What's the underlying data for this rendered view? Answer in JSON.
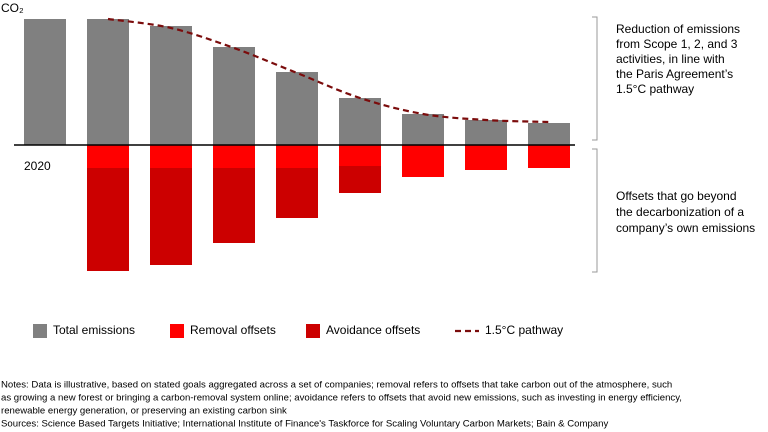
{
  "chart_data": {
    "type": "bar",
    "y_label": "CO₂",
    "categories": [
      "2020",
      null,
      null,
      null,
      null,
      null,
      null,
      null,
      null
    ],
    "ylim": [
      -130,
      130
    ],
    "series": [
      {
        "name": "Total emissions",
        "color": "#808080",
        "values": [
          126,
          126,
          119,
          98,
          73,
          47,
          31,
          25,
          22
        ]
      },
      {
        "name": "Removal offsets",
        "color": "#ff0000",
        "values": [
          0,
          -23,
          -23,
          -23,
          -23,
          -21,
          -32,
          -25,
          -23
        ]
      },
      {
        "name": "Avoidance offsets",
        "color": "#cc0000",
        "values": [
          0,
          -103,
          -97,
          -75,
          -50,
          -27,
          0,
          0,
          0
        ]
      },
      {
        "name": "1.5°C pathway",
        "type": "line",
        "dashed": true,
        "color": "#7b0c0c",
        "values": [
          null,
          126,
          117,
          97,
          72,
          47,
          31,
          25,
          23
        ]
      }
    ],
    "annotations": [
      {
        "lines": [
          "Reduction of emissions",
          "from Scope 1, 2, and 3",
          "activities, in line with",
          "the Paris Agreement’s",
          "1.5°C pathway"
        ]
      },
      {
        "lines": [
          "Offsets that go beyond",
          "the decarbonization of a",
          "company’s own emissions"
        ]
      }
    ],
    "notes": [
      "Notes: Data is illustrative, based on stated goals aggregated across a set of companies; removal refers to offsets that take carbon out of the atmosphere, such",
      "as growing a new forest or bringing a carbon-removal system online; avoidance refers to offsets that avoid new emissions, such as investing in energy efficiency,",
      "renewable energy generation, or preserving an existing carbon sink",
      "Sources: Science Based Targets Initiative; International Institute of Finance's Taskforce for Scaling Voluntary Carbon Markets; Bain & Company"
    ]
  }
}
